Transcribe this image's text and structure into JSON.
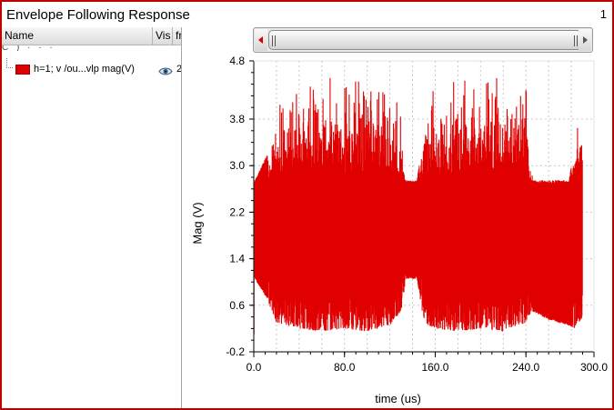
{
  "window": {
    "title": "Envelope Following Response",
    "number": "1"
  },
  "browser": {
    "columns": [
      "Name",
      "Vis",
      "fr"
    ],
    "partial_row": "C            )  ·  ·  ·",
    "trace": {
      "name": "h=1; v /ou...vlp mag(V)",
      "extra": "2",
      "color": "#e00000",
      "visible_icon": "eye-icon"
    }
  },
  "plot": {
    "accent_color": "#e00000",
    "frame_color": "#c00000",
    "ylabel": "Mag (V)",
    "xlabel": "time (us)"
  },
  "chart_data": {
    "type": "area",
    "title": "",
    "xlabel": "time (us)",
    "ylabel": "Mag (V)",
    "xlim": [
      0,
      300
    ],
    "ylim": [
      -0.2,
      4.8
    ],
    "xticks": [
      "0.0",
      "80.0",
      "160.0",
      "240.0",
      "300.0"
    ],
    "xtick_values": [
      0,
      80,
      160,
      240,
      300
    ],
    "yticks": [
      "4.8",
      "3.8",
      "3.0",
      "2.2",
      "1.4",
      "0.6",
      "-0.2"
    ],
    "ytick_values": [
      4.8,
      3.8,
      3.0,
      2.2,
      1.4,
      0.6,
      -0.2
    ],
    "grid": true,
    "series": [
      {
        "name": "h=1; v /ou...vlp mag(V)",
        "color": "#e00000",
        "style": "dense envelope",
        "x": [
          0,
          1,
          12,
          20,
          40,
          60,
          80,
          100,
          120,
          130,
          134,
          136,
          144,
          148,
          150,
          160,
          180,
          200,
          220,
          240,
          245,
          260,
          278,
          284,
          290
        ],
        "upper": [
          0.1,
          2.75,
          3.2,
          3.6,
          3.9,
          4.1,
          4.0,
          4.1,
          3.9,
          3.5,
          2.75,
          2.75,
          2.75,
          3.3,
          3.6,
          3.9,
          4.1,
          4.0,
          4.1,
          3.9,
          2.75,
          2.75,
          2.75,
          3.45,
          3.45
        ],
        "lower": [
          0.0,
          1.05,
          0.7,
          0.3,
          0.2,
          0.15,
          0.2,
          0.15,
          0.25,
          0.5,
          1.05,
          1.05,
          1.05,
          0.55,
          0.3,
          0.2,
          0.15,
          0.2,
          0.15,
          0.3,
          0.5,
          0.35,
          0.25,
          0.2,
          0.4
        ]
      }
    ]
  }
}
